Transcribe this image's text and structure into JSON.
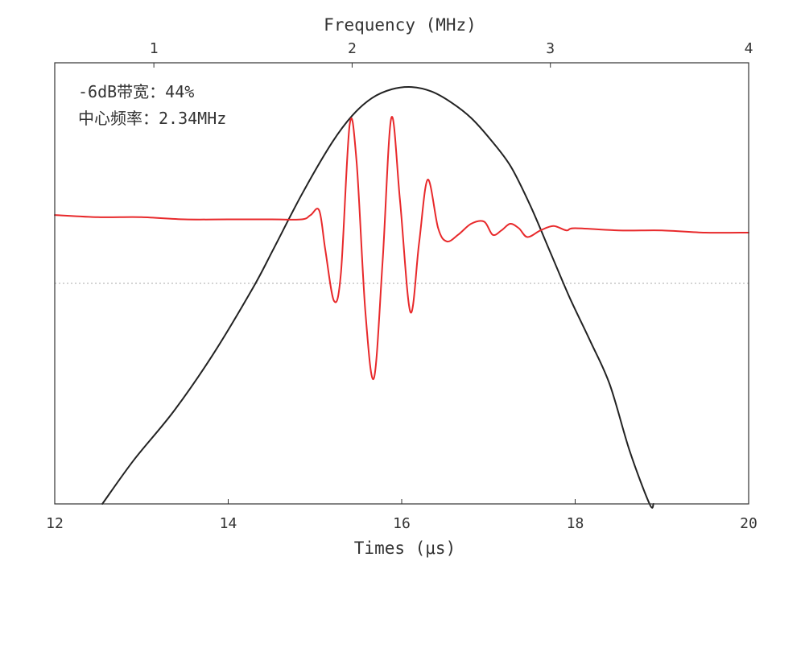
{
  "chart_data": {
    "type": "line",
    "xlabel": "Times (μs)",
    "x_top_label": "Frequency (MHz)",
    "xlim": [
      12,
      20
    ],
    "x_top_lim": [
      0.5,
      4
    ],
    "x_ticks": [
      "12",
      "14",
      "16",
      "18",
      "20"
    ],
    "x_top_ticks": [
      "1",
      "2",
      "3",
      "4"
    ],
    "ylim": [
      -1,
      1
    ],
    "y_ticks_shown": false,
    "reference_line": {
      "y": 0,
      "style": "dotted"
    },
    "annotations": [
      "-6dB带宽：44%",
      "中心频率：2.34MHz"
    ],
    "colors": {
      "time_signal": "#e8292b",
      "spectrum": "#222222",
      "frame": "#333333",
      "reference": "#aaaaaa"
    },
    "series": [
      {
        "id": "time_signal",
        "axis": "bottom",
        "color": "#e8292b",
        "x": [
          12.0,
          12.5,
          13.0,
          13.5,
          14.0,
          14.5,
          14.85,
          14.95,
          15.05,
          15.12,
          15.22,
          15.3,
          15.4,
          15.48,
          15.58,
          15.68,
          15.78,
          15.88,
          15.98,
          16.1,
          16.2,
          16.3,
          16.42,
          16.52,
          16.65,
          16.8,
          16.95,
          17.05,
          17.15,
          17.25,
          17.35,
          17.45,
          17.6,
          17.75,
          17.9,
          18.0,
          18.5,
          19.0,
          19.5,
          20.0
        ],
        "y": [
          0.31,
          0.3,
          0.3,
          0.29,
          0.29,
          0.29,
          0.29,
          0.31,
          0.33,
          0.15,
          -0.08,
          0.05,
          0.72,
          0.55,
          -0.12,
          -0.43,
          0.1,
          0.75,
          0.38,
          -0.13,
          0.18,
          0.47,
          0.25,
          0.19,
          0.22,
          0.27,
          0.28,
          0.22,
          0.24,
          0.27,
          0.25,
          0.21,
          0.24,
          0.26,
          0.24,
          0.25,
          0.24,
          0.24,
          0.23,
          0.23
        ]
      },
      {
        "id": "spectrum",
        "axis": "top",
        "color": "#222222",
        "x": [
          0.74,
          0.9,
          1.1,
          1.3,
          1.5,
          1.6,
          1.75,
          1.9,
          2.0,
          2.1,
          2.2,
          2.3,
          2.4,
          2.5,
          2.6,
          2.7,
          2.8,
          2.9,
          3.0,
          3.1,
          3.2,
          3.3,
          3.4,
          3.5,
          3.52
        ],
        "y": [
          -1.0,
          -0.8,
          -0.58,
          -0.32,
          -0.02,
          0.15,
          0.41,
          0.64,
          0.76,
          0.84,
          0.88,
          0.89,
          0.87,
          0.82,
          0.75,
          0.65,
          0.53,
          0.35,
          0.14,
          -0.07,
          -0.26,
          -0.46,
          -0.76,
          -1.0,
          -1.0
        ]
      }
    ]
  }
}
